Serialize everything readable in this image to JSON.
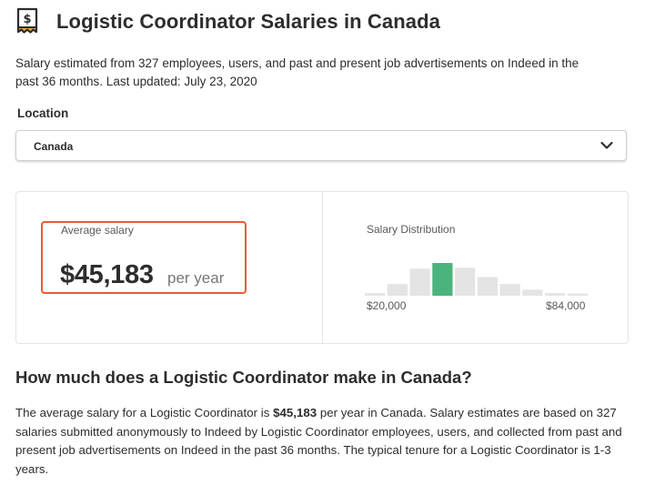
{
  "header": {
    "icon": "receipt-dollar-icon",
    "title": "Logistic Coordinator Salaries in Canada"
  },
  "subtitle": "Salary estimated from 327 employees, users, and past and present job advertisements on Indeed in the past 36 months. Last updated: July 23, 2020",
  "location": {
    "label": "Location",
    "selected": "Canada"
  },
  "average": {
    "label": "Average salary",
    "amount": "$45,183",
    "period": "per year"
  },
  "distribution": {
    "label": "Salary Distribution",
    "min_label": "$20,000",
    "max_label": "$84,000",
    "highlight_index": 3,
    "colors": {
      "highlight": "#4ab47e",
      "bar": "#e4e4e4"
    }
  },
  "chart_data": {
    "type": "bar",
    "title": "Salary Distribution",
    "x_range": [
      "$20,000",
      "$84,000"
    ],
    "values": [
      0.06,
      0.27,
      0.62,
      0.75,
      0.64,
      0.43,
      0.27,
      0.14,
      0.06,
      0.05
    ],
    "grid": false,
    "legend": "none"
  },
  "details": {
    "heading": "How much does a Logistic Coordinator make in Canada?",
    "text_before": "The average salary for a Logistic Coordinator is ",
    "text_bold": "$45,183",
    "text_after": " per year in Canada. Salary estimates are based on 327 salaries submitted anonymously to Indeed by Logistic Coordinator employees, users, and collected from past and present job advertisements on Indeed in the past 36 months. The typical tenure for a Logistic Coordinator is 1-3 years."
  },
  "colors": {
    "accent_border": "#ea5a36",
    "text": "#2d2d2d"
  }
}
